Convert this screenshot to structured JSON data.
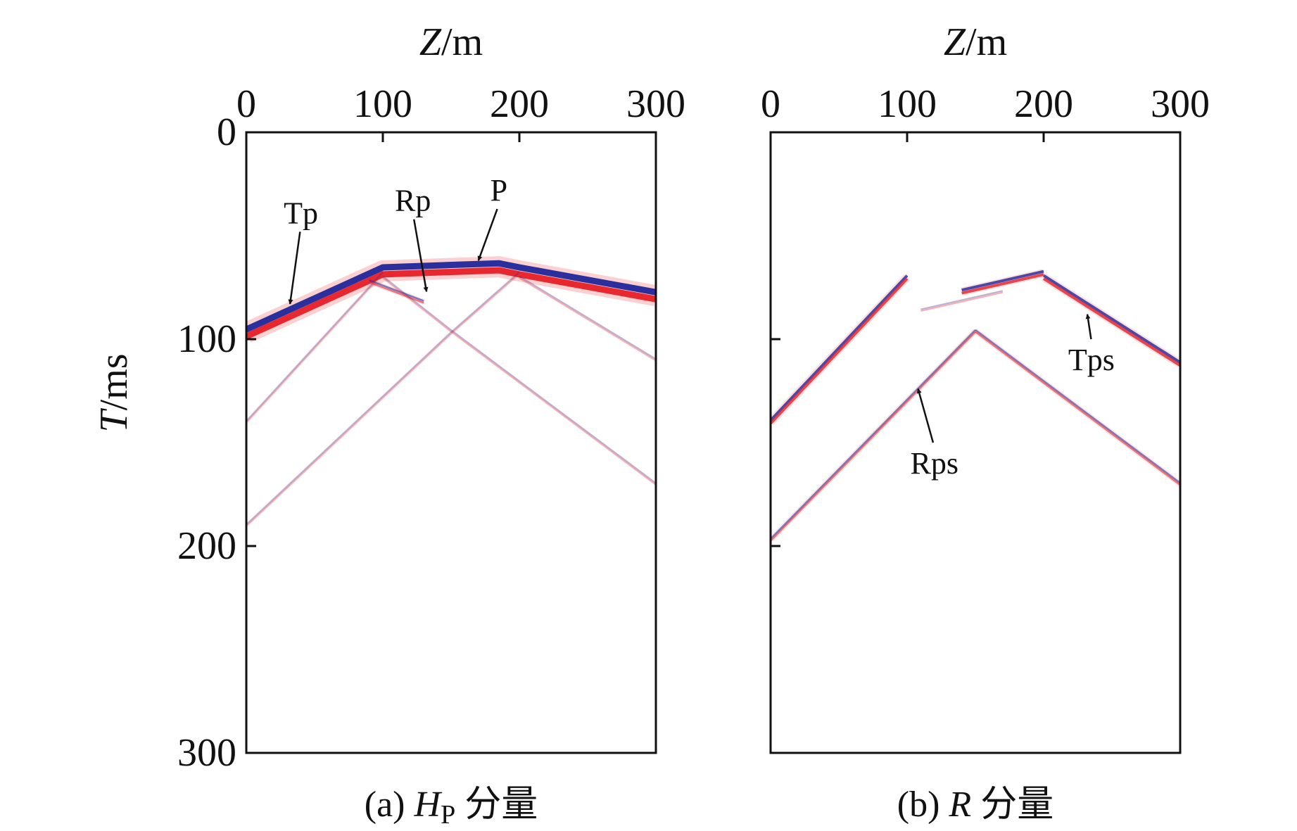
{
  "chart_data": [
    {
      "id": "a",
      "type": "line",
      "title": "",
      "xlabel": {
        "italic": "Z",
        "rest": "/m"
      },
      "ylabel": {
        "italic": "T",
        "rest": "/ms"
      },
      "xlim": [
        0,
        300
      ],
      "ylim": [
        0,
        300
      ],
      "xaxis_position": "top",
      "yaxis_inverted": true,
      "x_ticks": [
        0,
        100,
        200,
        300
      ],
      "y_ticks": [
        0,
        100,
        200,
        300
      ],
      "show_y_tick_labels": true,
      "caption": {
        "prefix": "(a) ",
        "italic": "H",
        "sub": "P",
        "suffix": " 分量"
      },
      "colors": {
        "positive": "#e8282f",
        "negative": "#2b2f9e"
      },
      "series": [
        {
          "name": "P",
          "style": "strong",
          "x": [
            0,
            100,
            185,
            200,
            300
          ],
          "y": [
            97,
            67,
            65,
            67,
            79
          ]
        },
        {
          "name": "Tp-faint",
          "style": "faint",
          "x": [
            0,
            100
          ],
          "y": [
            140,
            68
          ]
        },
        {
          "name": "Rp-up",
          "style": "weak",
          "x": [
            90,
            130
          ],
          "y": [
            72,
            82
          ]
        },
        {
          "name": "Rp-from-100",
          "style": "faint",
          "x": [
            100,
            150,
            300
          ],
          "y": [
            70,
            96,
            170
          ]
        },
        {
          "name": "Rp-from-200",
          "style": "faint",
          "x": [
            200,
            150,
            0
          ],
          "y": [
            68,
            97,
            190
          ]
        },
        {
          "name": "tail-right",
          "style": "faint",
          "x": [
            200,
            300
          ],
          "y": [
            70,
            110
          ]
        }
      ],
      "annotations": [
        {
          "text": "Tp",
          "x": 40,
          "y": 44,
          "arrow_to": [
            32,
            83
          ]
        },
        {
          "text": "Rp",
          "x": 122,
          "y": 38,
          "arrow_to": [
            132,
            77
          ]
        },
        {
          "text": "P",
          "x": 185,
          "y": 33,
          "arrow_to": [
            170,
            62
          ]
        }
      ]
    },
    {
      "id": "b",
      "type": "line",
      "title": "",
      "xlabel": {
        "italic": "Z",
        "rest": "/m"
      },
      "ylabel": null,
      "xlim": [
        0,
        300
      ],
      "ylim": [
        0,
        300
      ],
      "xaxis_position": "top",
      "yaxis_inverted": true,
      "x_ticks": [
        0,
        100,
        200,
        300
      ],
      "y_ticks": [
        0,
        100,
        200,
        300
      ],
      "show_y_tick_labels": false,
      "caption": {
        "prefix": "(b) ",
        "italic": "R",
        "sub": "",
        "suffix": " 分量"
      },
      "colors": {
        "positive": "#e8282f",
        "negative": "#2b2f9e"
      },
      "series": [
        {
          "name": "left-branch",
          "style": "medium",
          "x": [
            0,
            100
          ],
          "y": [
            140,
            70
          ]
        },
        {
          "name": "Tps",
          "style": "medium",
          "x": [
            200,
            300
          ],
          "y": [
            70,
            112
          ]
        },
        {
          "name": "upper-mid",
          "style": "medium",
          "x": [
            140,
            200
          ],
          "y": [
            77,
            68
          ]
        },
        {
          "name": "Rps",
          "style": "weak",
          "x": [
            0,
            150
          ],
          "y": [
            197,
            96
          ]
        },
        {
          "name": "Rps-right",
          "style": "weak",
          "x": [
            150,
            300
          ],
          "y": [
            96,
            170
          ]
        },
        {
          "name": "lower-mid",
          "style": "faint",
          "x": [
            110,
            170
          ],
          "y": [
            86,
            77
          ]
        }
      ],
      "annotations": [
        {
          "text": "Tps",
          "x": 235,
          "y": 115,
          "arrow_to": [
            232,
            88
          ]
        },
        {
          "text": "Rps",
          "x": 120,
          "y": 165,
          "arrow_to": [
            108,
            124
          ]
        }
      ]
    }
  ]
}
